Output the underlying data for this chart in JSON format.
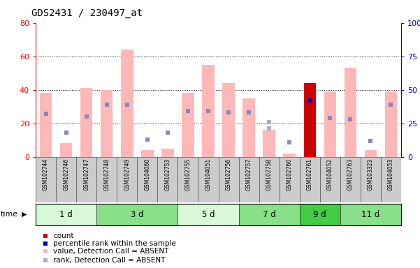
{
  "title": "GDS2431 / 230497_at",
  "samples": [
    "GSM102744",
    "GSM102746",
    "GSM102747",
    "GSM102748",
    "GSM102749",
    "GSM104060",
    "GSM102753",
    "GSM102755",
    "GSM104051",
    "GSM102756",
    "GSM102757",
    "GSM102758",
    "GSM102760",
    "GSM102761",
    "GSM104052",
    "GSM102763",
    "GSM103323",
    "GSM104053"
  ],
  "groups": [
    {
      "label": "1 d",
      "indices": [
        0,
        1,
        2
      ],
      "color": "#d8f8d8"
    },
    {
      "label": "3 d",
      "indices": [
        3,
        4,
        5,
        6
      ],
      "color": "#88e088"
    },
    {
      "label": "5 d",
      "indices": [
        7,
        8,
        9
      ],
      "color": "#d8f8d8"
    },
    {
      "label": "7 d",
      "indices": [
        10,
        11,
        12
      ],
      "color": "#88e088"
    },
    {
      "label": "9 d",
      "indices": [
        13,
        14
      ],
      "color": "#44cc44"
    },
    {
      "label": "11 d",
      "indices": [
        15,
        16,
        17
      ],
      "color": "#88e088"
    }
  ],
  "pink_bars": [
    38,
    8,
    41,
    40,
    64,
    4,
    5,
    38,
    55,
    44,
    35,
    16,
    2,
    44,
    39,
    53,
    4,
    39
  ],
  "blue_sq_values": [
    32,
    18,
    30,
    39,
    39,
    13,
    18,
    34,
    34,
    33,
    33,
    null,
    11,
    null,
    29,
    28,
    12,
    39
  ],
  "light_blue_sq_values": [
    null,
    null,
    null,
    null,
    null,
    null,
    null,
    null,
    null,
    null,
    null,
    21,
    null,
    null,
    null,
    null,
    null,
    null
  ],
  "extra_light_blue": [
    null,
    null,
    null,
    null,
    null,
    null,
    null,
    null,
    null,
    null,
    null,
    26,
    null,
    null,
    null,
    null,
    null,
    null
  ],
  "red_bar_val": 44,
  "red_bar_idx": 13,
  "blue_dot_val": 42,
  "blue_dot_idx": 13,
  "ylim_left": [
    0,
    80
  ],
  "ylim_right": [
    0,
    100
  ],
  "yticks_left": [
    0,
    20,
    40,
    60,
    80
  ],
  "yticks_right": [
    0,
    25,
    50,
    75,
    100
  ],
  "ytick_labels_right": [
    "0",
    "25",
    "50",
    "75",
    "100%"
  ],
  "pink_color": "#ffb8b8",
  "blue_sq_color": "#8888bb",
  "light_blue_color": "#aaaacc",
  "red_color": "#cc0000",
  "dark_blue_color": "#0000bb",
  "bar_width": 0.6,
  "grid_yticks": [
    20,
    40,
    60
  ]
}
